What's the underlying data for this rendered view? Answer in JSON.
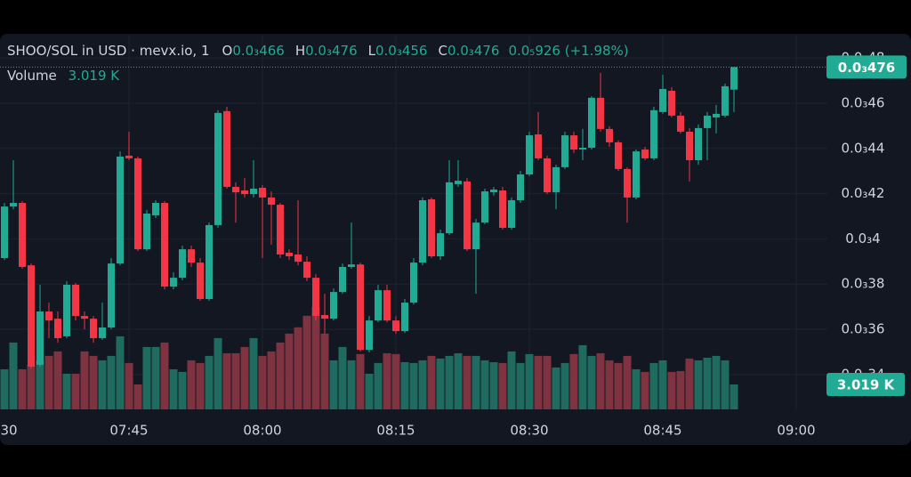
{
  "chart_data": {
    "type": "candlestick",
    "header": {
      "title": "SHOO/SOL in USD · mevx.io, 1",
      "ohlc": [
        {
          "key": "O",
          "value": "0.0₃466"
        },
        {
          "key": "H",
          "value": "0.0₃476"
        },
        {
          "key": "L",
          "value": "0.0₃456"
        },
        {
          "key": "C",
          "value": "0.0₃476"
        }
      ],
      "change": "0.0₅926 (+1.98%)",
      "volume_name": "Volume",
      "volume_value": "3.019 K"
    },
    "last_price_label": "0.0₃476",
    "last_volume_label": "3.019 K",
    "xticks": [
      "30",
      "07:45",
      "08:00",
      "08:15",
      "08:30",
      "08:45",
      "09:00"
    ],
    "ylim": [
      0.0003246,
      0.0004899
    ],
    "yticks": [
      {
        "value": 0.00034,
        "label": "0.0₃34"
      },
      {
        "value": 0.00036,
        "label": "0.0₃36"
      },
      {
        "value": 0.00038,
        "label": "0.0₃38"
      },
      {
        "value": 0.0004,
        "label": "0.0₃4"
      },
      {
        "value": 0.00042,
        "label": "0.0₃42"
      },
      {
        "value": 0.00044,
        "label": "0.0₃44"
      },
      {
        "value": 0.00046,
        "label": "0.0₃46"
      },
      {
        "value": 0.00048,
        "label": "0.0₃48"
      }
    ],
    "volume_lim": [
      0,
      45300
    ],
    "grid": true,
    "up_color": "#22ab94",
    "down_color": "#f23645",
    "up_volume_color": "#1f6b5f",
    "down_volume_color": "#7f3340",
    "open": [
      0.0003915,
      0.0004143,
      0.0004159,
      0.0003883,
      0.0003443,
      0.0003679,
      0.0003647,
      0.0003569,
      0.0003797,
      0.0003659,
      0.0003647,
      0.0003561,
      0.0003608,
      0.0003891,
      0.0004368,
      0.0004356,
      0.0003954,
      0.0004104,
      0.0004159,
      0.0003789,
      0.0003828,
      0.0003954,
      0.0003895,
      0.0003734,
      0.0004061,
      0.0004565,
      0.000423,
      0.0004214,
      0.0004198,
      0.0004226,
      0.0004183,
      0.0004151,
      0.0003939,
      0.0003931,
      0.0003899,
      0.0003828,
      0.0003663,
      0.0003647,
      0.0003765,
      0.0003876,
      0.0003887,
      0.0003509,
      0.0003639,
      0.0003773,
      0.0003639,
      0.0003592,
      0.0003718,
      0.0003895,
      0.0004175,
      0.0003923,
      0.0004025,
      0.0004242,
      0.0004254,
      0.0003954,
      0.0004072,
      0.0004206,
      0.0004214,
      0.0004049,
      0.0004171,
      0.0004285,
      0.0004462,
      0.0004356,
      0.0004206,
      0.0004317,
      0.0004458,
      0.0004395,
      0.0004403,
      0.0004624,
      0.0004486,
      0.0004427,
      0.0004309,
      0.0004183,
      0.0004395,
      0.0004356,
      0.0004561,
      0.0004655,
      0.0004545,
      0.0004474,
      0.0004348,
      0.000449,
      0.0004537,
      0.0004545,
      0.000466
    ],
    "high": [
      0.0004159,
      0.0004348,
      0.0004167,
      0.0003891,
      0.0003797,
      0.0003718,
      0.0003679,
      0.0003813,
      0.0003805,
      0.0003679,
      0.0003659,
      0.0003718,
      0.0003915,
      0.0004387,
      0.0004474,
      0.0004364,
      0.0004128,
      0.0004171,
      0.0004167,
      0.0003852,
      0.000397,
      0.000397,
      0.0003915,
      0.0004072,
      0.0004569,
      0.0004584,
      0.000425,
      0.0004269,
      0.0004348,
      0.0004238,
      0.000421,
      0.0004159,
      0.0003954,
      0.0004171,
      0.0003923,
      0.0003844,
      0.0003757,
      0.0003781,
      0.0003891,
      0.0004072,
      0.0003895,
      0.0003659,
      0.0003797,
      0.0003797,
      0.0003659,
      0.0003734,
      0.0003915,
      0.0004183,
      0.0004183,
      0.0004041,
      0.0004348,
      0.0004348,
      0.0004269,
      0.0004088,
      0.0004222,
      0.000423,
      0.000423,
      0.0004183,
      0.0004301,
      0.0004474,
      0.0004561,
      0.0004368,
      0.0004328,
      0.0004474,
      0.0004474,
      0.0004486,
      0.0004631,
      0.0004734,
      0.0004498,
      0.0004435,
      0.0004317,
      0.0004395,
      0.0004407,
      0.0004584,
      0.0004726,
      0.0004671,
      0.0004561,
      0.000449,
      0.0004506,
      0.0004561,
      0.0004592,
      0.0004687,
      0.000476
    ],
    "low": [
      0.0003907,
      0.0004131,
      0.0003868,
      0.0003427,
      0.0003435,
      0.0003561,
      0.0003541,
      0.0003561,
      0.0003639,
      0.00036,
      0.0003541,
      0.0003553,
      0.00036,
      0.0003883,
      0.0004348,
      0.0003946,
      0.0003946,
      0.0004092,
      0.0003777,
      0.0003777,
      0.0003817,
      0.0003876,
      0.0003726,
      0.0003726,
      0.0004049,
      0.0004222,
      0.0004072,
      0.0004183,
      0.0004183,
      0.0003915,
      0.0003974,
      0.0003915,
      0.0003907,
      0.0003883,
      0.0003813,
      0.0003639,
      0.000358,
      0.0003639,
      0.0003757,
      0.0003868,
      0.0003502,
      0.0003498,
      0.0003631,
      0.0003631,
      0.000358,
      0.0003584,
      0.000371,
      0.0003883,
      0.0003915,
      0.0003907,
      0.0004017,
      0.000423,
      0.0003946,
      0.0003757,
      0.0004065,
      0.0004191,
      0.0004041,
      0.0004041,
      0.0004159,
      0.0004277,
      0.0004348,
      0.0004198,
      0.0004131,
      0.0004309,
      0.000438,
      0.0004348,
      0.0004395,
      0.0004474,
      0.0004407,
      0.0004301,
      0.0004072,
      0.0004175,
      0.0004348,
      0.0004348,
      0.0004553,
      0.0004537,
      0.0004466,
      0.0004254,
      0.0004328,
      0.0004348,
      0.0004466,
      0.0004537,
      0.000456
    ],
    "close": [
      0.0004143,
      0.0004159,
      0.0003876,
      0.0003435,
      0.0003679,
      0.0003639,
      0.0003561,
      0.0003797,
      0.0003659,
      0.0003647,
      0.0003561,
      0.0003608,
      0.0003891,
      0.0004364,
      0.0004356,
      0.0003954,
      0.0004112,
      0.0004159,
      0.0003789,
      0.0003828,
      0.0003954,
      0.0003895,
      0.0003734,
      0.0004061,
      0.0004557,
      0.000423,
      0.0004206,
      0.0004198,
      0.0004222,
      0.0004183,
      0.0004151,
      0.0003931,
      0.0003923,
      0.0003899,
      0.0003828,
      0.0003659,
      0.0003647,
      0.0003765,
      0.0003876,
      0.0003887,
      0.0003509,
      0.0003639,
      0.0003773,
      0.0003639,
      0.0003592,
      0.0003718,
      0.0003895,
      0.0004171,
      0.0003923,
      0.0004025,
      0.000425,
      0.0004257,
      0.0003954,
      0.0004072,
      0.000421,
      0.0004218,
      0.0004049,
      0.0004171,
      0.0004285,
      0.0004458,
      0.0004356,
      0.0004206,
      0.0004317,
      0.0004458,
      0.0004395,
      0.0004403,
      0.0004624,
      0.0004486,
      0.0004427,
      0.0004309,
      0.0004183,
      0.0004387,
      0.0004356,
      0.0004569,
      0.0004663,
      0.0004545,
      0.0004474,
      0.0004348,
      0.000449,
      0.0004545,
      0.0004553,
      0.0004675,
      0.000476
    ],
    "volume": [
      4860,
      8100,
      4860,
      5400,
      5940,
      6480,
      7020,
      4320,
      4320,
      7020,
      6480,
      5940,
      6480,
      8860,
      5620,
      3020,
      7560,
      7560,
      8100,
      4860,
      4540,
      5940,
      5620,
      6480,
      8640,
      6800,
      6800,
      7560,
      8640,
      6480,
      7020,
      8100,
      9180,
      9940,
      11340,
      12420,
      9180,
      5940,
      7560,
      5940,
      6700,
      4320,
      5620,
      6800,
      6700,
      5720,
      5620,
      5940,
      6480,
      6160,
      6480,
      6800,
      6480,
      6480,
      5940,
      5720,
      5620,
      7020,
      5620,
      6700,
      6480,
      6480,
      5080,
      5620,
      6700,
      7780,
      6480,
      6800,
      5940,
      5620,
      6480,
      4860,
      4540,
      5620,
      5940,
      4540,
      4640,
      6160,
      5940,
      6260,
      6480,
      5940,
      3019
    ]
  }
}
